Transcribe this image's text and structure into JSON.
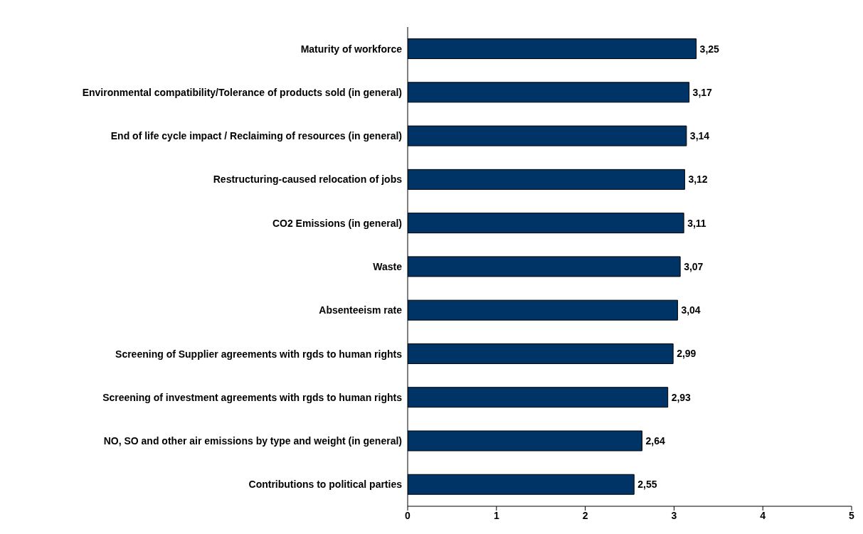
{
  "chart_data": {
    "type": "bar",
    "orientation": "horizontal",
    "categories": [
      "Maturity of workforce",
      "Environmental compatibility/Tolerance of products sold (in general)",
      "End of life cycle impact / Reclaiming of resources (in general)",
      "Restructuring-caused relocation of jobs",
      "CO2 Emissions (in general)",
      "Waste",
      "Absenteeism rate",
      "Screening of Supplier agreements with rgds to human rights",
      "Screening of investment agreements with rgds to human rights",
      "NO, SO and other air emissions by type and weight (in general)",
      "Contributions to political parties"
    ],
    "values": [
      3.25,
      3.17,
      3.14,
      3.12,
      3.11,
      3.07,
      3.04,
      2.99,
      2.93,
      2.64,
      2.55
    ],
    "value_labels": [
      "3,25",
      "3,17",
      "3,14",
      "3,12",
      "3,11",
      "3,07",
      "3,04",
      "2,99",
      "2,93",
      "2,64",
      "2,55"
    ],
    "color": "#003366",
    "xlim": [
      0,
      5
    ],
    "xticks": [
      0,
      1,
      2,
      3,
      4,
      5
    ],
    "grid": false,
    "legend": false
  }
}
